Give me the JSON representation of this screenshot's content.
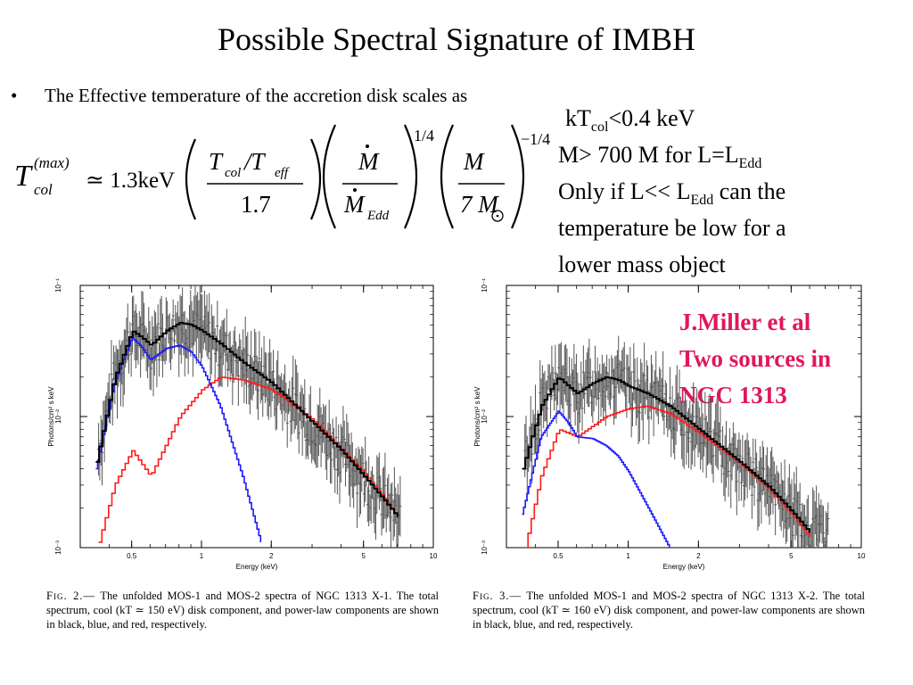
{
  "slide": {
    "title": "Possible Spectral Signature of IMBH",
    "bullet": "The Effective temperature of the accretion disk scales as",
    "formula": {
      "lhs_base": "T",
      "lhs_sup": "(max)",
      "lhs_sub": "col",
      "approx": "≃ 1.3keV",
      "term1_num": "T",
      "term1_num_sub1": "col",
      "term1_num_mid": "/T",
      "term1_num_sub2": "eff",
      "term1_den": "1.7",
      "term2_num": "M",
      "term2_den": "M",
      "term2_den_sub": "Edd",
      "exp1": "1/4",
      "term3_num": "M",
      "term3_den": "7 M",
      "exp2": "−1/4"
    },
    "notes": [
      {
        "pre": "kT",
        "sub": "col",
        "post": "<0.4 keV"
      },
      {
        "pre": "M> 700 M for L=L",
        "sub": "Edd",
        "post": ""
      },
      {
        "pre": "Only if L<< L",
        "sub": "Edd",
        "post": " can the"
      },
      {
        "pre": "temperature be low for a",
        "sub": "",
        "post": ""
      },
      {
        "pre": "lower mass object",
        "sub": "",
        "post": ""
      }
    ],
    "reference_lines": [
      "J.Miller et al",
      "Two sources in",
      "NGC 1313"
    ]
  },
  "figures": [
    {
      "id": "fig2",
      "caption_label": "Fig. 2.—",
      "caption_text": "The unfolded MOS-1 and MOS-2 spectra of NGC 1313 X-1. The total spectrum, cool (kT ≃ 150 eV) disk component, and power-law components are shown in black, blue, and red, respectively.",
      "ylabel": "Photons/cm² s keV",
      "xlabel": "Energy (keV)"
    },
    {
      "id": "fig3",
      "caption_label": "Fig. 3.—",
      "caption_text": "The unfolded MOS-1 and MOS-2 spectra of NGC 1313 X-2. The total spectrum, cool (kT ≃ 160 eV) disk component, and power-law components are shown in black, blue, and red, respectively.",
      "ylabel": "Photons/cm² s keV",
      "xlabel": "Energy (keV)"
    }
  ],
  "chart_data": [
    {
      "type": "line",
      "title": "",
      "xlabel": "Energy (keV)",
      "ylabel": "Photons/cm² s keV",
      "x_scale": "log",
      "y_scale": "log",
      "xlim": [
        0.3,
        10
      ],
      "ylim": [
        0.001,
        0.1
      ],
      "x_ticks": [
        "0.5",
        "1",
        "2",
        "5",
        "10"
      ],
      "y_ticks": [
        "10⁻¹",
        "10⁻²",
        "10⁻³"
      ],
      "colors": {
        "total": "#000000",
        "disk": "#1a1aff",
        "powerlaw": "#ff1a1a",
        "data": "#555555"
      },
      "series": [
        {
          "key": "total",
          "x": [
            0.35,
            0.42,
            0.5,
            0.55,
            0.6,
            0.7,
            0.8,
            0.9,
            1.0,
            1.2,
            1.5,
            2.0,
            3.0,
            4.0,
            5.0,
            6.0,
            7.0
          ],
          "y": [
            0.0045,
            0.02,
            0.045,
            0.04,
            0.035,
            0.045,
            0.052,
            0.05,
            0.045,
            0.036,
            0.026,
            0.018,
            0.009,
            0.0055,
            0.0035,
            0.0024,
            0.0017
          ]
        },
        {
          "key": "disk",
          "x": [
            0.35,
            0.42,
            0.5,
            0.55,
            0.6,
            0.7,
            0.8,
            0.9,
            1.0,
            1.2,
            1.5,
            1.8
          ],
          "y": [
            0.004,
            0.018,
            0.04,
            0.034,
            0.027,
            0.033,
            0.035,
            0.031,
            0.024,
            0.012,
            0.0035,
            0.0011
          ]
        },
        {
          "key": "powerlaw",
          "x": [
            0.36,
            0.42,
            0.5,
            0.6,
            0.8,
            1.0,
            1.2,
            1.5,
            2.0,
            3.0,
            4.0,
            5.0,
            6.0,
            7.0
          ],
          "y": [
            0.0011,
            0.003,
            0.0055,
            0.0035,
            0.01,
            0.016,
            0.02,
            0.019,
            0.016,
            0.0095,
            0.0056,
            0.0037,
            0.0025,
            0.0017
          ]
        }
      ]
    },
    {
      "type": "line",
      "title": "",
      "xlabel": "Energy (keV)",
      "ylabel": "Photons/cm² s keV",
      "x_scale": "log",
      "y_scale": "log",
      "xlim": [
        0.3,
        10
      ],
      "ylim": [
        0.001,
        0.1
      ],
      "x_ticks": [
        "0.5",
        "1",
        "2",
        "5",
        "10"
      ],
      "y_ticks": [
        "10⁻¹",
        "10⁻²",
        "10⁻³"
      ],
      "colors": {
        "total": "#000000",
        "disk": "#1a1aff",
        "powerlaw": "#ff1a1a",
        "data": "#555555"
      },
      "series": [
        {
          "key": "total",
          "x": [
            0.35,
            0.42,
            0.5,
            0.55,
            0.6,
            0.7,
            0.8,
            0.9,
            1.0,
            1.2,
            1.5,
            2.0,
            3.0,
            4.0,
            5.0,
            6.0
          ],
          "y": [
            0.004,
            0.012,
            0.02,
            0.017,
            0.015,
            0.018,
            0.02,
            0.019,
            0.017,
            0.015,
            0.012,
            0.008,
            0.0045,
            0.0029,
            0.0019,
            0.0013
          ]
        },
        {
          "key": "disk",
          "x": [
            0.35,
            0.42,
            0.5,
            0.55,
            0.6,
            0.7,
            0.8,
            0.9,
            1.0,
            1.2,
            1.5
          ],
          "y": [
            0.0018,
            0.007,
            0.011,
            0.009,
            0.007,
            0.0068,
            0.006,
            0.005,
            0.0038,
            0.0021,
            0.001
          ]
        },
        {
          "key": "powerlaw",
          "x": [
            0.36,
            0.42,
            0.5,
            0.6,
            0.8,
            1.0,
            1.2,
            1.5,
            2.0,
            3.0,
            4.0,
            5.0,
            6.0
          ],
          "y": [
            0.001,
            0.0035,
            0.008,
            0.007,
            0.01,
            0.0115,
            0.012,
            0.0105,
            0.0075,
            0.0044,
            0.0028,
            0.0018,
            0.0012
          ]
        }
      ]
    }
  ]
}
